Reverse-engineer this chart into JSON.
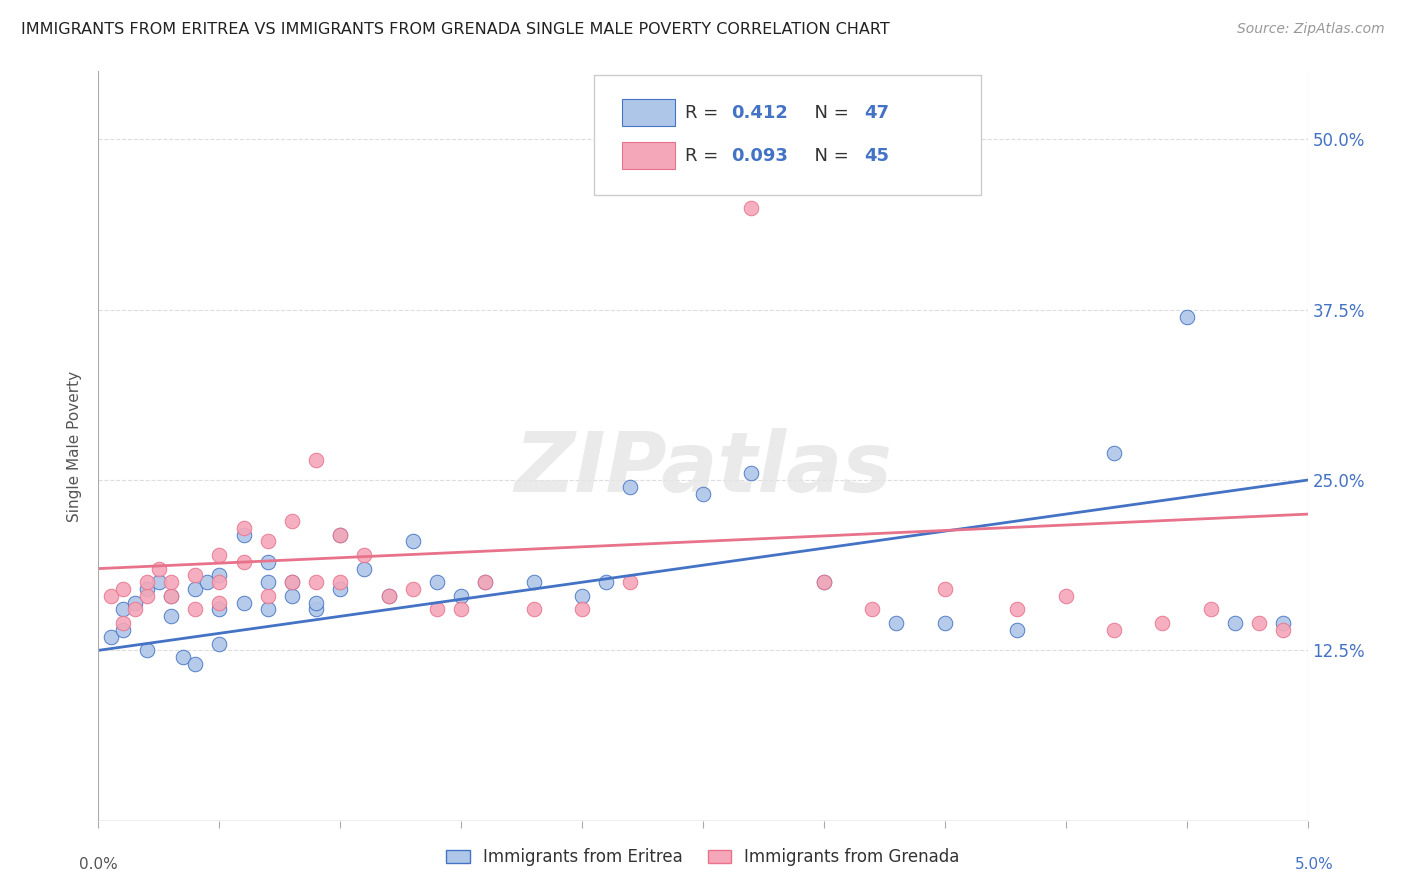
{
  "title": "IMMIGRANTS FROM ERITREA VS IMMIGRANTS FROM GRENADA SINGLE MALE POVERTY CORRELATION CHART",
  "source": "Source: ZipAtlas.com",
  "ylabel": "Single Male Poverty",
  "ytick_labels": [
    "12.5%",
    "25.0%",
    "37.5%",
    "50.0%"
  ],
  "ytick_values": [
    0.125,
    0.25,
    0.375,
    0.5
  ],
  "xlim": [
    0.0,
    0.05
  ],
  "ylim": [
    0.0,
    0.55
  ],
  "eritrea_color": "#aec6e8",
  "grenada_color": "#f4a7b9",
  "eritrea_edge_color": "#4472c4",
  "grenada_edge_color": "#e8728a",
  "eritrea_line_color": "#4472c4",
  "grenada_line_color": "#e8728a",
  "watermark": "ZIPatlas",
  "background_color": "#ffffff",
  "grid_color": "#dddddd",
  "legend_label_e": "R =  0.412   N = 47",
  "legend_label_g": "R =  0.093   N = 45",
  "bottom_label_e": "Immigrants from Eritrea",
  "bottom_label_g": "Immigrants from Grenada",
  "eritrea_R": "0.412",
  "eritrea_N": "47",
  "grenada_R": "0.093",
  "grenada_N": "45",
  "eritrea_line_x0": 0.0,
  "eritrea_line_y0": 0.125,
  "eritrea_line_x1": 0.05,
  "eritrea_line_y1": 0.25,
  "grenada_line_x0": 0.0,
  "grenada_line_y0": 0.185,
  "grenada_line_x1": 0.05,
  "grenada_line_y1": 0.225
}
